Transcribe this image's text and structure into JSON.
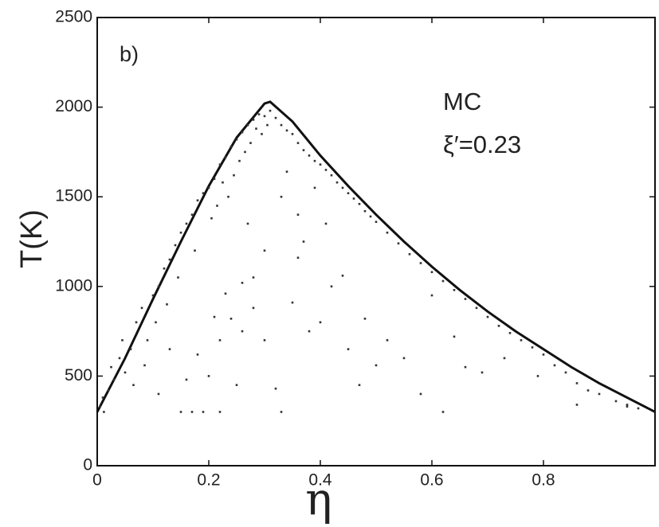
{
  "chart_data": {
    "type": "scatter",
    "xlabel": "η",
    "ylabel": "T(K)",
    "panel_label": "b)",
    "annotations": [
      "MC",
      "ξ′=0.23"
    ],
    "xlim": [
      0,
      1
    ],
    "ylim": [
      0,
      2500
    ],
    "xticks": [
      0,
      0.2,
      0.4,
      0.6,
      0.8
    ],
    "yticks": [
      0,
      500,
      1000,
      1500,
      2000,
      2500
    ],
    "series": [
      {
        "type": "line",
        "color": "#111",
        "x": [
          0,
          0.05,
          0.1,
          0.15,
          0.2,
          0.25,
          0.3,
          0.31,
          0.35,
          0.4,
          0.45,
          0.5,
          0.55,
          0.6,
          0.65,
          0.7,
          0.75,
          0.8,
          0.85,
          0.9,
          0.95,
          1.0
        ],
        "values": [
          300,
          600,
          930,
          1250,
          1560,
          1830,
          2020,
          2030,
          1920,
          1730,
          1560,
          1400,
          1250,
          1110,
          980,
          860,
          750,
          650,
          550,
          460,
          380,
          300
        ]
      },
      {
        "type": "scatter",
        "color": "#333",
        "x": [
          0.005,
          0.01,
          0.012,
          0.02,
          0.03,
          0.025,
          0.04,
          0.05,
          0.045,
          0.06,
          0.07,
          0.065,
          0.08,
          0.09,
          0.085,
          0.1,
          0.11,
          0.105,
          0.12,
          0.13,
          0.125,
          0.14,
          0.15,
          0.145,
          0.16,
          0.17,
          0.175,
          0.18,
          0.19,
          0.2,
          0.21,
          0.22,
          0.23,
          0.24,
          0.25,
          0.26,
          0.27,
          0.28,
          0.29,
          0.3,
          0.305,
          0.31,
          0.295,
          0.285,
          0.275,
          0.265,
          0.255,
          0.245,
          0.235,
          0.225,
          0.215,
          0.205,
          0.32,
          0.33,
          0.34,
          0.35,
          0.36,
          0.37,
          0.38,
          0.39,
          0.4,
          0.41,
          0.42,
          0.43,
          0.44,
          0.45,
          0.46,
          0.47,
          0.48,
          0.49,
          0.5,
          0.52,
          0.54,
          0.56,
          0.58,
          0.6,
          0.62,
          0.64,
          0.66,
          0.68,
          0.7,
          0.72,
          0.74,
          0.76,
          0.78,
          0.8,
          0.82,
          0.84,
          0.86,
          0.88,
          0.9,
          0.93,
          0.95,
          0.97,
          0.15,
          0.17,
          0.19,
          0.22,
          0.16,
          0.2,
          0.25,
          0.18,
          0.22,
          0.26,
          0.24,
          0.28,
          0.3,
          0.33,
          0.32,
          0.35,
          0.36,
          0.37,
          0.38,
          0.4,
          0.42,
          0.44,
          0.45,
          0.47,
          0.48,
          0.5,
          0.52,
          0.55,
          0.58,
          0.6,
          0.62,
          0.64,
          0.66,
          0.69,
          0.73,
          0.79,
          0.86,
          0.95,
          0.27,
          0.33,
          0.3,
          0.26,
          0.21,
          0.13,
          0.11,
          0.23,
          0.28,
          0.36,
          0.41,
          0.34,
          0.39
        ],
        "values": [
          330,
          380,
          300,
          420,
          480,
          550,
          600,
          520,
          700,
          650,
          800,
          450,
          880,
          700,
          560,
          950,
          1000,
          800,
          1100,
          1150,
          900,
          1230,
          1300,
          1050,
          1350,
          1400,
          1200,
          1480,
          1520,
          1550,
          1600,
          1680,
          1720,
          1780,
          1820,
          1860,
          1900,
          1930,
          1960,
          1950,
          1900,
          1980,
          1850,
          1880,
          1800,
          1750,
          1700,
          1620,
          1500,
          1580,
          1450,
          1380,
          1940,
          1900,
          1870,
          1850,
          1800,
          1760,
          1730,
          1700,
          1680,
          1650,
          1620,
          1580,
          1550,
          1520,
          1490,
          1460,
          1420,
          1390,
          1360,
          1300,
          1240,
          1180,
          1130,
          1080,
          1030,
          980,
          930,
          880,
          830,
          780,
          740,
          700,
          660,
          620,
          560,
          520,
          460,
          420,
          400,
          360,
          340,
          320,
          300,
          300,
          300,
          300,
          480,
          500,
          450,
          620,
          700,
          750,
          820,
          880,
          700,
          300,
          430,
          910,
          1160,
          1250,
          750,
          800,
          1000,
          1060,
          650,
          450,
          820,
          560,
          700,
          600,
          400,
          950,
          300,
          720,
          550,
          520,
          600,
          500,
          340,
          330,
          1350,
          1500,
          1200,
          1020,
          830,
          650,
          400,
          960,
          1050,
          1400,
          1350,
          1640,
          1550
        ]
      }
    ]
  }
}
